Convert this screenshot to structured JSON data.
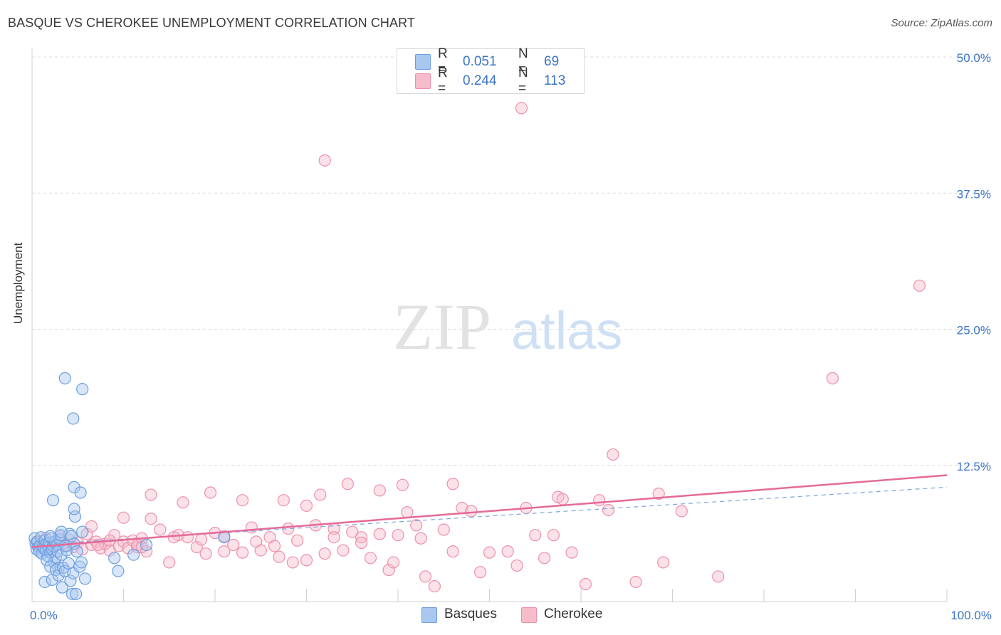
{
  "header": {
    "title": "BASQUE VS CHEROKEE UNEMPLOYMENT CORRELATION CHART",
    "source": "Source: ZipAtlas.com"
  },
  "watermark": {
    "part1": "ZIP",
    "part2": "atlas"
  },
  "legend": {
    "rows": [
      {
        "r_label": "R =",
        "r_value": "0.051",
        "n_label": "N =",
        "n_value": "69",
        "color": "#a9c8f0",
        "border": "#6f9ee0"
      },
      {
        "r_label": "R =",
        "r_value": "0.244",
        "n_label": "N =",
        "n_value": "113",
        "color": "#f7bccc",
        "border": "#ee8fab"
      }
    ]
  },
  "bottom_legend": {
    "basques": "Basques",
    "cherokee": "Cherokee"
  },
  "colors": {
    "blue_fill": "#a9c8f0",
    "blue_stroke": "#6d9fe0",
    "pink_fill": "#f7bccc",
    "pink_stroke": "#ee90ab",
    "pink_line": "#e56a98",
    "blue_dash": "#7aa6e0",
    "axis_text": "#3b74c6",
    "grid": "#dcdcdc"
  },
  "chart_data": {
    "type": "scatter",
    "title": "BASQUE VS CHEROKEE UNEMPLOYMENT CORRELATION CHART",
    "xlabel": "",
    "ylabel": "Unemployment",
    "xlim": [
      0,
      100
    ],
    "ylim": [
      0,
      50
    ],
    "x_tick_labels": [
      "0.0%",
      "100.0%"
    ],
    "y_ticks": [
      12.5,
      25.0,
      37.5,
      50.0
    ],
    "y_tick_labels": [
      "12.5%",
      "25.0%",
      "37.5%",
      "50.0%"
    ],
    "grid": true,
    "legend_position": "top-center",
    "series": [
      {
        "name": "Basques",
        "R": 0.051,
        "N": 69,
        "trend": {
          "x": [
            0,
            100
          ],
          "y": [
            5.2,
            10.5
          ],
          "style": "dashed"
        },
        "points": [
          [
            0.3,
            5.8
          ],
          [
            0.4,
            5.3
          ],
          [
            0.5,
            4.8
          ],
          [
            0.6,
            5.5
          ],
          [
            0.7,
            5.0
          ],
          [
            0.8,
            4.6
          ],
          [
            0.9,
            5.2
          ],
          [
            1.0,
            5.9
          ],
          [
            1.1,
            4.4
          ],
          [
            1.2,
            5.1
          ],
          [
            1.3,
            4.9
          ],
          [
            1.4,
            5.6
          ],
          [
            1.5,
            4.7
          ],
          [
            1.6,
            5.3
          ],
          [
            1.7,
            4.2
          ],
          [
            1.8,
            5.0
          ],
          [
            1.9,
            5.4
          ],
          [
            2.0,
            4.5
          ],
          [
            2.1,
            5.8
          ],
          [
            2.2,
            4.8
          ],
          [
            2.3,
            5.1
          ],
          [
            2.4,
            3.6
          ],
          [
            2.5,
            5.5
          ],
          [
            2.6,
            4.0
          ],
          [
            2.7,
            5.2
          ],
          [
            2.8,
            4.6
          ],
          [
            2.9,
            3.1
          ],
          [
            3.0,
            5.7
          ],
          [
            3.1,
            6.1
          ],
          [
            3.2,
            4.3
          ],
          [
            1.4,
            1.8
          ],
          [
            1.6,
            3.8
          ],
          [
            2.0,
            3.2
          ],
          [
            2.2,
            2.0
          ],
          [
            2.6,
            2.9
          ],
          [
            2.9,
            2.4
          ],
          [
            3.3,
            1.3
          ],
          [
            3.4,
            3.1
          ],
          [
            3.6,
            2.8
          ],
          [
            3.8,
            4.7
          ],
          [
            4.0,
            3.5
          ],
          [
            4.1,
            6.2
          ],
          [
            4.2,
            1.9
          ],
          [
            4.4,
            0.7
          ],
          [
            4.5,
            2.6
          ],
          [
            4.7,
            7.8
          ],
          [
            4.8,
            0.7
          ],
          [
            5.2,
            3.2
          ],
          [
            5.4,
            3.6
          ],
          [
            5.5,
            6.4
          ],
          [
            5.8,
            2.1
          ],
          [
            3.2,
            6.4
          ],
          [
            3.7,
            5.1
          ],
          [
            4.3,
            6.0
          ],
          [
            4.6,
            5.3
          ],
          [
            4.9,
            4.6
          ],
          [
            2.3,
            9.3
          ],
          [
            4.6,
            8.5
          ],
          [
            4.6,
            10.5
          ],
          [
            5.3,
            10.0
          ],
          [
            3.6,
            20.5
          ],
          [
            5.5,
            19.5
          ],
          [
            4.5,
            16.8
          ],
          [
            9.0,
            4.0
          ],
          [
            9.4,
            2.8
          ],
          [
            11.1,
            4.3
          ],
          [
            12.5,
            5.2
          ],
          [
            21.0,
            5.9
          ],
          [
            2.0,
            6.0
          ]
        ]
      },
      {
        "name": "Cherokee",
        "R": 0.244,
        "N": 113,
        "trend": {
          "x": [
            0,
            100
          ],
          "y": [
            5.0,
            11.6
          ],
          "style": "solid"
        },
        "points": [
          [
            0.5,
            5.5
          ],
          [
            1.0,
            5.0
          ],
          [
            1.5,
            5.8
          ],
          [
            2.0,
            4.6
          ],
          [
            2.5,
            5.3
          ],
          [
            3.0,
            6.0
          ],
          [
            3.5,
            5.1
          ],
          [
            4.0,
            5.7
          ],
          [
            4.5,
            5.0
          ],
          [
            5.0,
            5.4
          ],
          [
            5.5,
            4.8
          ],
          [
            6.0,
            6.2
          ],
          [
            6.5,
            5.2
          ],
          [
            7.0,
            5.5
          ],
          [
            7.5,
            4.9
          ],
          [
            8.0,
            5.3
          ],
          [
            8.5,
            4.7
          ],
          [
            9.0,
            6.1
          ],
          [
            9.5,
            5.1
          ],
          [
            10.0,
            5.5
          ],
          [
            10.5,
            4.9
          ],
          [
            11.0,
            5.6
          ],
          [
            11.5,
            5.0
          ],
          [
            12.0,
            5.8
          ],
          [
            12.5,
            4.6
          ],
          [
            13.0,
            7.6
          ],
          [
            14.0,
            6.6
          ],
          [
            15.0,
            3.6
          ],
          [
            16.0,
            6.1
          ],
          [
            17.0,
            5.9
          ],
          [
            18.0,
            5.0
          ],
          [
            19.0,
            4.4
          ],
          [
            20.0,
            6.3
          ],
          [
            21.0,
            4.6
          ],
          [
            22.0,
            5.2
          ],
          [
            23.0,
            4.5
          ],
          [
            24.0,
            6.8
          ],
          [
            25.0,
            4.7
          ],
          [
            26.0,
            5.9
          ],
          [
            27.0,
            4.1
          ],
          [
            28.0,
            6.7
          ],
          [
            29.0,
            5.6
          ],
          [
            30.0,
            3.8
          ],
          [
            31.0,
            7.0
          ],
          [
            32.0,
            4.4
          ],
          [
            33.0,
            6.7
          ],
          [
            34.0,
            4.7
          ],
          [
            35.0,
            6.4
          ],
          [
            36.0,
            5.9
          ],
          [
            37.0,
            4.0
          ],
          [
            38.0,
            6.2
          ],
          [
            39.0,
            2.9
          ],
          [
            40.0,
            6.1
          ],
          [
            41.0,
            8.2
          ],
          [
            42.0,
            7.0
          ],
          [
            43.0,
            2.3
          ],
          [
            44.0,
            1.4
          ],
          [
            45.0,
            6.6
          ],
          [
            46.0,
            4.6
          ],
          [
            47.0,
            8.6
          ],
          [
            48.0,
            8.3
          ],
          [
            49.0,
            2.7
          ],
          [
            50.0,
            4.5
          ],
          [
            52.0,
            4.6
          ],
          [
            53.0,
            3.3
          ],
          [
            54.0,
            8.6
          ],
          [
            55.0,
            6.1
          ],
          [
            56.0,
            4.0
          ],
          [
            57.0,
            6.1
          ],
          [
            59.0,
            4.5
          ],
          [
            60.5,
            1.6
          ],
          [
            62.0,
            9.3
          ],
          [
            63.0,
            8.4
          ],
          [
            66.0,
            1.8
          ],
          [
            69.0,
            3.6
          ],
          [
            75.0,
            2.3
          ],
          [
            10.0,
            7.7
          ],
          [
            13.0,
            9.8
          ],
          [
            16.5,
            9.1
          ],
          [
            19.5,
            10.0
          ],
          [
            23.0,
            9.3
          ],
          [
            27.5,
            9.3
          ],
          [
            30.0,
            8.8
          ],
          [
            31.5,
            9.8
          ],
          [
            34.5,
            10.8
          ],
          [
            38.0,
            10.2
          ],
          [
            40.5,
            10.7
          ],
          [
            46.0,
            10.8
          ],
          [
            57.5,
            9.6
          ],
          [
            68.5,
            9.9
          ],
          [
            71.0,
            8.3
          ],
          [
            58.0,
            9.4
          ],
          [
            63.5,
            13.5
          ],
          [
            32.0,
            40.5
          ],
          [
            53.5,
            45.3
          ],
          [
            87.5,
            20.5
          ],
          [
            97.0,
            29.0
          ],
          [
            3.5,
            5.4
          ],
          [
            6.5,
            6.9
          ],
          [
            7.2,
            5.2
          ],
          [
            8.5,
            5.6
          ],
          [
            11.5,
            5.2
          ],
          [
            12.0,
            5.0
          ],
          [
            15.5,
            5.9
          ],
          [
            18.5,
            5.7
          ],
          [
            21.0,
            6.0
          ],
          [
            24.5,
            5.5
          ],
          [
            26.5,
            5.1
          ],
          [
            28.5,
            3.6
          ],
          [
            33.0,
            5.9
          ],
          [
            36.0,
            5.4
          ],
          [
            39.5,
            3.6
          ],
          [
            42.5,
            5.8
          ]
        ]
      }
    ]
  }
}
